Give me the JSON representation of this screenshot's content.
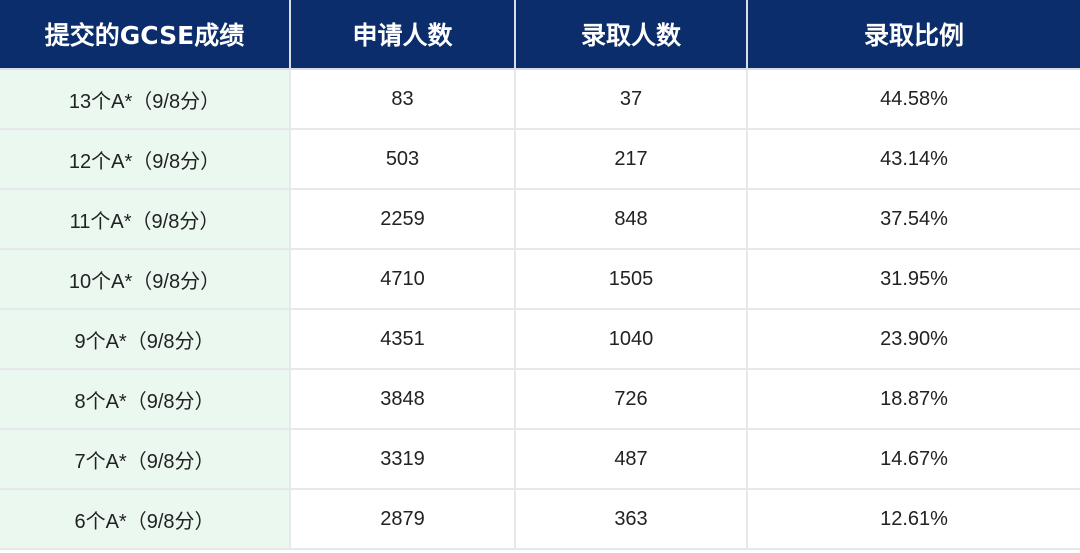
{
  "table": {
    "headers": [
      "提交的GCSE成绩",
      "申请人数",
      "录取人数",
      "录取比例"
    ],
    "rows": [
      [
        "13个A*（9/8分）",
        "83",
        "37",
        "44.58%"
      ],
      [
        "12个A*（9/8分）",
        "503",
        "217",
        "43.14%"
      ],
      [
        "11个A*（9/8分）",
        "2259",
        "848",
        "37.54%"
      ],
      [
        "10个A*（9/8分）",
        "4710",
        "1505",
        "31.95%"
      ],
      [
        "9个A*（9/8分）",
        "4351",
        "1040",
        "23.90%"
      ],
      [
        "8个A*（9/8分）",
        "3848",
        "726",
        "18.87%"
      ],
      [
        "7个A*（9/8分）",
        "3319",
        "487",
        "14.67%"
      ],
      [
        "6个A*（9/8分）",
        "2879",
        "363",
        "12.61%"
      ]
    ]
  },
  "colors": {
    "header_bg": "#0c2d6b",
    "first_column_bg": "#eaf8ef"
  }
}
